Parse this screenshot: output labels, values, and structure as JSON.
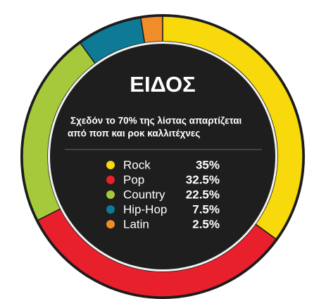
{
  "chart_data": {
    "type": "donut",
    "title": "ΕΙΔΟΣ",
    "subtitle_lines": [
      "Σχεδόν το 70% της λίστας απαρτίζεται",
      "από ποπ και ροκ καλλιτέχνες"
    ],
    "categories": [
      "Rock",
      "Pop",
      "Country",
      "Hip-Hop",
      "Latin"
    ],
    "values": [
      35,
      32.5,
      22.5,
      7.5,
      2.5
    ],
    "value_labels": [
      "35%",
      "32.5%",
      "22.5%",
      "7.5%",
      "2.5%"
    ],
    "colors": [
      "#f7d90c",
      "#e8202c",
      "#a6c93b",
      "#0f7a95",
      "#f08d28"
    ]
  }
}
